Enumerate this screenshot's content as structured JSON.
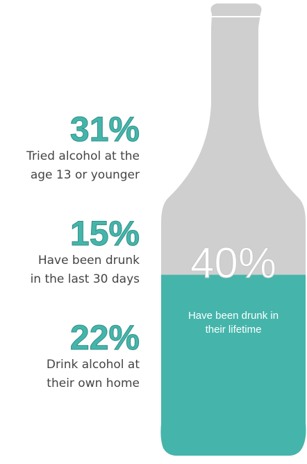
{
  "stats": [
    {
      "figure": "31%",
      "lines": [
        "Tried alcohol at the",
        "age 13 or younger"
      ]
    },
    {
      "figure": "15%",
      "lines": [
        "Have been drunk",
        "in the last 30 days"
      ]
    },
    {
      "figure": "22%",
      "lines": [
        "Drink alcohol at",
        "their own home"
      ]
    }
  ],
  "bottle": {
    "value": 40,
    "value_label": "40%",
    "caption": [
      "Have been drunk in",
      "their lifetime"
    ],
    "fill_color": "#45b5ab",
    "empty_color": "#cfcfcf"
  }
}
